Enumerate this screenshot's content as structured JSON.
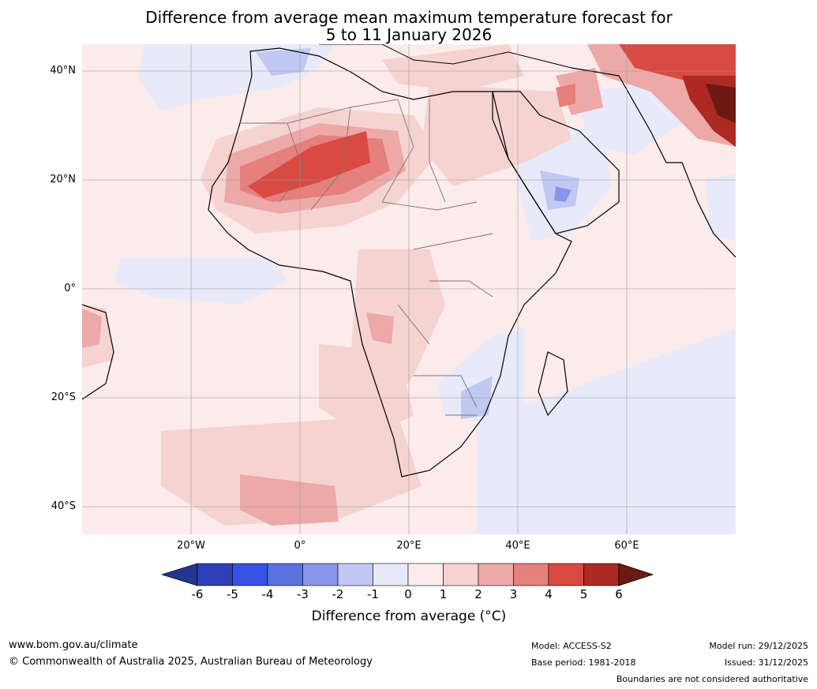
{
  "title_line1": "Difference from average mean maximum temperature forecast for",
  "title_line2": "5 to 11 January 2026",
  "lat_labels": [
    "40°N",
    "20°N",
    "0°",
    "20°S",
    "40°S"
  ],
  "lon_labels": [
    "20°W",
    "0°",
    "20°E",
    "40°E",
    "60°E"
  ],
  "colorbar": {
    "ticks": [
      "-6",
      "-5",
      "-4",
      "-3",
      "-2",
      "-1",
      "0",
      "1",
      "2",
      "3",
      "4",
      "5",
      "6"
    ],
    "colors": [
      "#24368f",
      "#2f3fb8",
      "#3552e2",
      "#5b72e0",
      "#8796e8",
      "#c1c8f2",
      "#e8eafa",
      "#fbebea",
      "#f5d3d1",
      "#eda9a7",
      "#e5807c",
      "#d94a42",
      "#ac2a22",
      "#6b1a14"
    ],
    "label": "Difference from average (°C)"
  },
  "footer": {
    "website": "www.bom.gov.au/climate",
    "copyright": "© Commonwealth of Australia 2025, Australian Bureau of Meteorology",
    "model": "Model: ACCESS-S2",
    "base_period": "Base period: 1981-2018",
    "model_run": "Model run: 29/12/2025",
    "issued": "Issued: 31/12/2025",
    "disclaimer": "Boundaries are not considered authoritative"
  }
}
